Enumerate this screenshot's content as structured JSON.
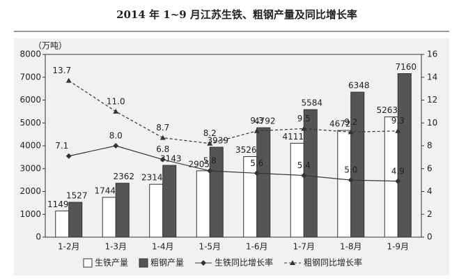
{
  "chart_data": {
    "type": "bar-line",
    "title": "2014 年 1~9 月江苏生铁、粗钢产量及同比增长率",
    "y_label": "（万吨）",
    "categories": [
      "1-2月",
      "1-3月",
      "1-4月",
      "1-5月",
      "1-6月",
      "1-7月",
      "1-8月",
      "1-9月"
    ],
    "series": [
      {
        "name": "生铁产量",
        "kind": "bar",
        "color": "#ffffff",
        "values": [
          1149,
          1744,
          2314,
          2905,
          3526,
          4111,
          4672,
          5263
        ]
      },
      {
        "name": "粗钢产量",
        "kind": "bar",
        "color": "#555555",
        "values": [
          1527,
          2362,
          3143,
          3939,
          4792,
          5584,
          6348,
          7160
        ]
      },
      {
        "name": "生铁同比增长率",
        "kind": "line",
        "axis": "y2",
        "color": "#333333",
        "marker": "diamond",
        "values": [
          7.1,
          8.0,
          6.8,
          5.8,
          5.6,
          5.4,
          5.0,
          4.9
        ],
        "value_labels": [
          "7.1",
          "8.0",
          "6.8",
          "5.8",
          "5.6",
          "5.4",
          "5.0",
          "4.9"
        ]
      },
      {
        "name": "粗钢同比增长率",
        "kind": "line",
        "axis": "y2",
        "color": "#333333",
        "marker": "triangle",
        "dashed": true,
        "values": [
          13.7,
          11.0,
          8.7,
          8.2,
          9.3,
          9.5,
          9.2,
          9.3
        ],
        "value_labels": [
          "13.7",
          "11.0",
          "8.7",
          "8.2",
          "9.3",
          "9.5",
          "9.2",
          "9.3"
        ]
      }
    ],
    "ylim": [
      0,
      8000
    ],
    "yticks": [
      0,
      1000,
      2000,
      3000,
      4000,
      5000,
      6000,
      7000,
      8000
    ],
    "y2lim": [
      0,
      16
    ],
    "y2ticks": [
      0,
      2,
      4,
      6,
      8,
      10,
      12,
      14,
      16
    ]
  }
}
